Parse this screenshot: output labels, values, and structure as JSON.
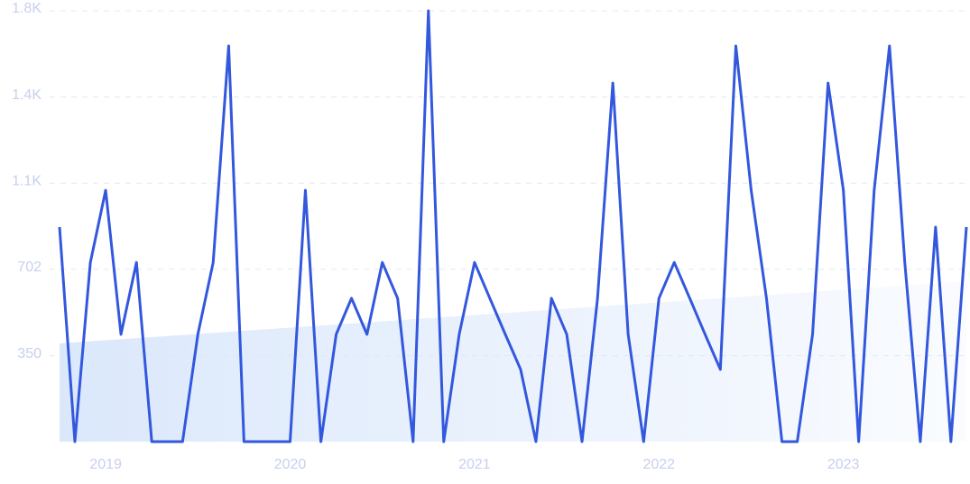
{
  "chart_data": {
    "type": "line",
    "x": [
      2018.75,
      2018.833,
      2018.917,
      2019,
      2019.083,
      2019.167,
      2019.25,
      2019.333,
      2019.417,
      2019.5,
      2019.583,
      2019.667,
      2019.75,
      2019.833,
      2019.917,
      2020,
      2020.083,
      2020.167,
      2020.25,
      2020.333,
      2020.417,
      2020.5,
      2020.583,
      2020.667,
      2020.75,
      2020.833,
      2020.917,
      2021,
      2021.083,
      2021.167,
      2021.25,
      2021.333,
      2021.417,
      2021.5,
      2021.583,
      2021.667,
      2021.75,
      2021.833,
      2021.917,
      2022,
      2022.083,
      2022.167,
      2022.25,
      2022.333,
      2022.417,
      2022.5,
      2022.583,
      2022.667,
      2022.75,
      2022.833,
      2022.917,
      2023,
      2023.083,
      2023.167,
      2023.25,
      2023.333,
      2023.417,
      2023.5,
      2023.583,
      2023.667
    ],
    "series": [
      {
        "color": "#3358dd",
        "values": [
          874,
          0,
          730,
          1024,
          437,
          730,
          0,
          0,
          0,
          437,
          730,
          1612,
          0,
          0,
          0,
          0,
          1024,
          0,
          437,
          584,
          437,
          730,
          584,
          0,
          1755,
          0,
          437,
          730,
          584,
          437,
          294,
          0,
          584,
          437,
          0,
          584,
          1461,
          437,
          0,
          584,
          730,
          584,
          437,
          294,
          1612,
          1024,
          584,
          0,
          0,
          437,
          1461,
          1024,
          0,
          1024,
          1612,
          730,
          0,
          874,
          0,
          874
        ]
      }
    ],
    "trend": [
      400,
      653
    ],
    "trend_color": "#dbe8fb",
    "xlim": [
      2018.75,
      2023.667
    ],
    "xticks": [
      2019,
      2020,
      2021,
      2022,
      2023
    ],
    "ylim": [
      0,
      1755
    ],
    "yticks": [
      350,
      702,
      {
        "value": 1053,
        "label": "1.1K"
      },
      {
        "value": 1404,
        "label": "1.4K"
      },
      {
        "value": 1755,
        "label": "1.8K"
      }
    ],
    "grid": true
  }
}
